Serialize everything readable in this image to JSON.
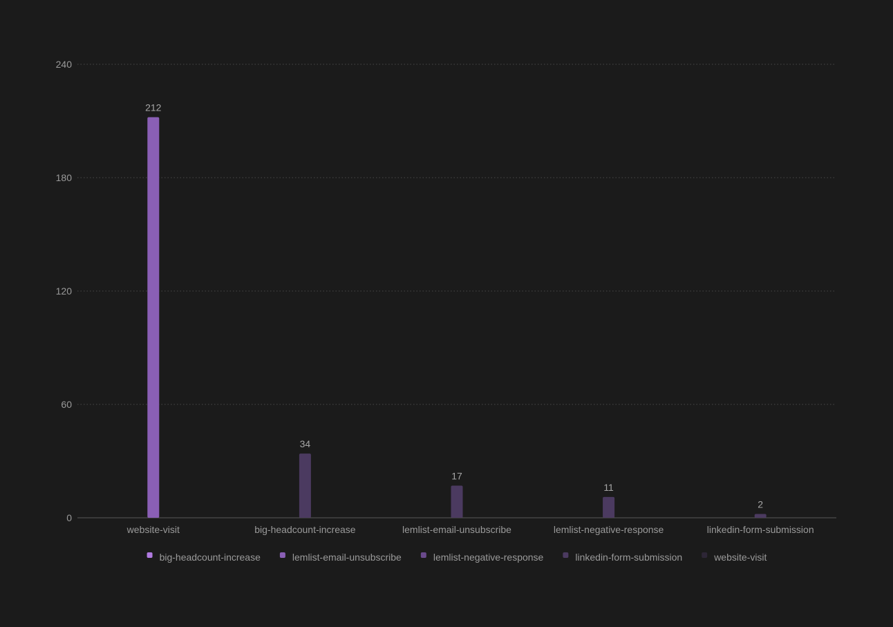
{
  "chart_data": {
    "type": "bar",
    "categories": [
      "website-visit",
      "big-headcount-increase",
      "lemlist-email-unsubscribe",
      "lemlist-negative-response",
      "linkedin-form-submission"
    ],
    "values": [
      212,
      34,
      17,
      11,
      2
    ],
    "bar_colors": [
      "#8a5fb5",
      "#4b3a60",
      "#4b3a60",
      "#4b3a60",
      "#4b3a60"
    ],
    "ylim": [
      0,
      240
    ],
    "yticks": [
      0,
      60,
      120,
      180,
      240
    ],
    "grid": true,
    "legend_position": "bottom",
    "legend": [
      {
        "label": "big-headcount-increase",
        "color": "#b07ae0"
      },
      {
        "label": "lemlist-email-unsubscribe",
        "color": "#8a5fb5"
      },
      {
        "label": "lemlist-negative-response",
        "color": "#6a4a8c"
      },
      {
        "label": "linkedin-form-submission",
        "color": "#4b3a60"
      },
      {
        "label": "website-visit",
        "color": "#2d2636"
      }
    ],
    "colors": {
      "background": "#1b1b1b",
      "grid": "#4a4a4a",
      "axis": "#5a5a5a",
      "text": "#9a9a9a"
    }
  }
}
